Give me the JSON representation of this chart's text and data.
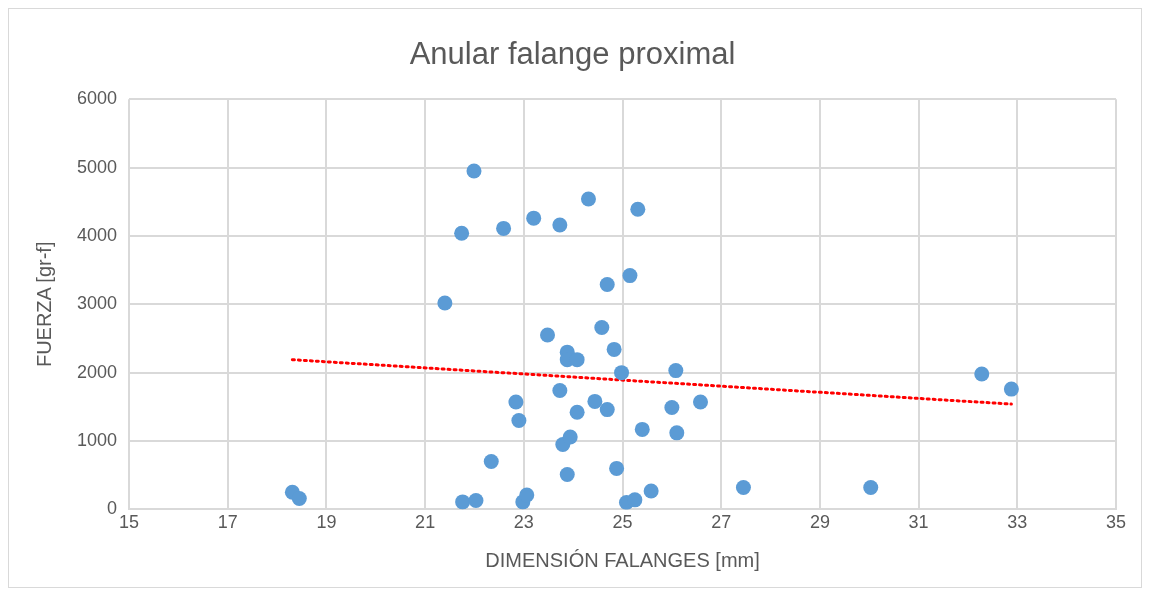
{
  "chart_data": {
    "type": "scatter",
    "title": "Anular falange proximal",
    "xlabel": "DIMENSIÓN FALANGES [mm]",
    "ylabel": "FUERZA [gr-f]",
    "xlim": [
      15,
      35
    ],
    "xticks": [
      15,
      17,
      19,
      21,
      23,
      25,
      27,
      29,
      31,
      33,
      35
    ],
    "ylim": [
      0,
      6000
    ],
    "yticks": [
      0,
      1000,
      2000,
      3000,
      4000,
      5000,
      6000
    ],
    "grid": true,
    "legend": false,
    "series": [
      {
        "type": "scatter",
        "color": "#5b9bd5",
        "marker": "circle",
        "x": [
          18.31,
          18.45,
          21.4,
          21.74,
          21.76,
          21.99,
          22.03,
          22.34,
          22.59,
          22.84,
          22.9,
          22.98,
          23.06,
          23.2,
          23.48,
          23.73,
          23.73,
          23.79,
          23.88,
          23.88,
          23.88,
          23.94,
          24.08,
          24.08,
          24.31,
          24.44,
          24.58,
          24.69,
          24.69,
          24.83,
          24.88,
          24.98,
          25.08,
          25.15,
          25.25,
          25.31,
          25.4,
          25.58,
          26.0,
          26.08,
          26.1,
          26.58,
          27.45,
          30.03,
          32.28,
          32.88
        ],
        "values": [
          250,
          160,
          3020,
          4040,
          110,
          4950,
          130,
          700,
          4110,
          1570,
          1300,
          110,
          210,
          4260,
          2550,
          4160,
          1740,
          950,
          2300,
          2190,
          510,
          1060,
          2190,
          1420,
          4540,
          1580,
          2660,
          3290,
          1460,
          2340,
          600,
          2000,
          100,
          3420,
          140,
          4390,
          1170,
          270,
          1490,
          2030,
          1120,
          1570,
          320,
          320,
          1980,
          1760
        ]
      },
      {
        "type": "line",
        "color": "#ff0000",
        "marker": "none",
        "line_style": "dotted",
        "x": [
          18.31,
          32.88
        ],
        "values": [
          2190,
          1540
        ]
      }
    ]
  }
}
